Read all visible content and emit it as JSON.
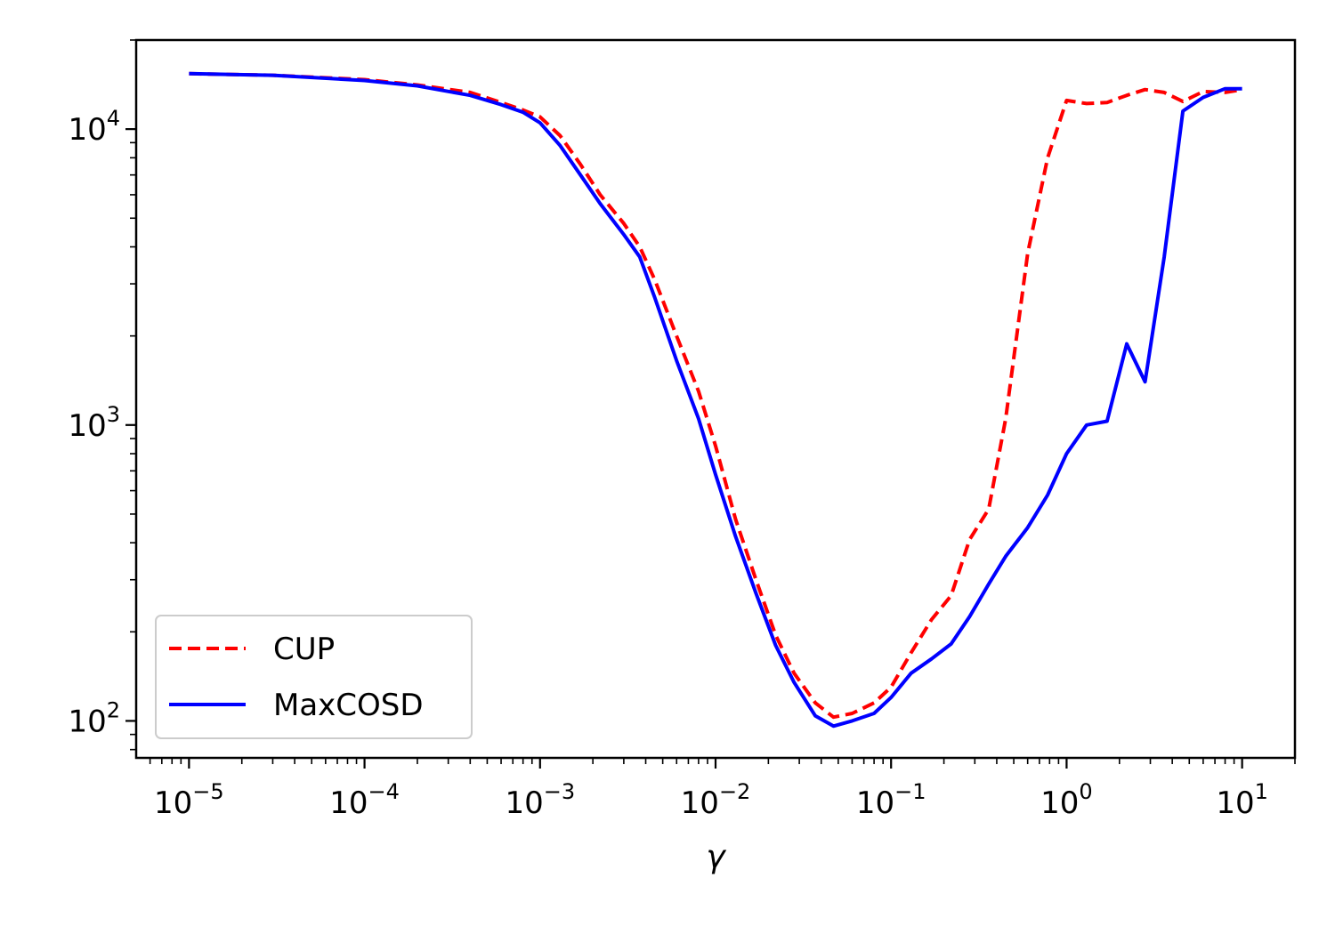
{
  "chart_data": {
    "type": "line",
    "title": "",
    "xlabel": "γ",
    "ylabel": "",
    "xscale": "log",
    "yscale": "log",
    "xlim": [
      5e-06,
      20
    ],
    "ylim": [
      75,
      20000
    ],
    "grid": false,
    "legend_position": "lower-left",
    "x_ticks": [
      {
        "base": "10",
        "exp": "−5",
        "value": 1e-05
      },
      {
        "base": "10",
        "exp": "−4",
        "value": 0.0001
      },
      {
        "base": "10",
        "exp": "−3",
        "value": 0.001
      },
      {
        "base": "10",
        "exp": "−2",
        "value": 0.01
      },
      {
        "base": "10",
        "exp": "−1",
        "value": 0.1
      },
      {
        "base": "10",
        "exp": "0",
        "value": 1
      },
      {
        "base": "10",
        "exp": "1",
        "value": 10
      }
    ],
    "y_ticks": [
      {
        "base": "10",
        "exp": "2",
        "value": 100
      },
      {
        "base": "10",
        "exp": "3",
        "value": 1000
      },
      {
        "base": "10",
        "exp": "4",
        "value": 10000
      }
    ],
    "series": [
      {
        "name": "CUP",
        "color": "#ff0000",
        "style": "dashed",
        "x": [
          1e-05,
          3e-05,
          0.0001,
          0.0002,
          0.0004,
          0.0006,
          0.0008,
          0.001,
          0.0013,
          0.0017,
          0.0022,
          0.003,
          0.0037,
          0.0045,
          0.006,
          0.008,
          0.01,
          0.013,
          0.017,
          0.022,
          0.028,
          0.037,
          0.047,
          0.06,
          0.08,
          0.1,
          0.13,
          0.17,
          0.22,
          0.28,
          0.36,
          0.45,
          0.6,
          0.78,
          1.0,
          1.3,
          1.7,
          2.2,
          2.8,
          3.6,
          4.6,
          6.0,
          8.0,
          10.0
        ],
        "y": [
          15400,
          15200,
          14700,
          14100,
          13300,
          12300,
          11600,
          11000,
          9500,
          7600,
          6000,
          4800,
          4000,
          3100,
          2000,
          1300,
          850,
          480,
          300,
          195,
          145,
          115,
          103,
          106,
          115,
          130,
          170,
          220,
          265,
          410,
          520,
          1050,
          3800,
          8000,
          12500,
          12200,
          12300,
          13000,
          13600,
          13300,
          12400,
          13400,
          13300,
          13600
        ]
      },
      {
        "name": "MaxCOSD",
        "color": "#0000ff",
        "style": "solid",
        "x": [
          1e-05,
          3e-05,
          0.0001,
          0.0002,
          0.0004,
          0.0006,
          0.0008,
          0.001,
          0.0013,
          0.0017,
          0.0022,
          0.003,
          0.0037,
          0.0045,
          0.006,
          0.008,
          0.01,
          0.013,
          0.017,
          0.022,
          0.028,
          0.037,
          0.047,
          0.06,
          0.08,
          0.1,
          0.13,
          0.17,
          0.22,
          0.28,
          0.36,
          0.45,
          0.6,
          0.78,
          1.0,
          1.3,
          1.7,
          2.2,
          2.8,
          3.6,
          4.6,
          6.0,
          8.0,
          10.0
        ],
        "y": [
          15400,
          15200,
          14600,
          14000,
          13000,
          12100,
          11400,
          10500,
          8800,
          7000,
          5600,
          4400,
          3700,
          2700,
          1650,
          1050,
          680,
          420,
          270,
          180,
          135,
          104,
          96,
          100,
          106,
          120,
          145,
          162,
          182,
          225,
          290,
          360,
          450,
          580,
          800,
          1000,
          1030,
          1880,
          1400,
          3700,
          11500,
          12800,
          13700,
          13700
        ]
      }
    ]
  }
}
